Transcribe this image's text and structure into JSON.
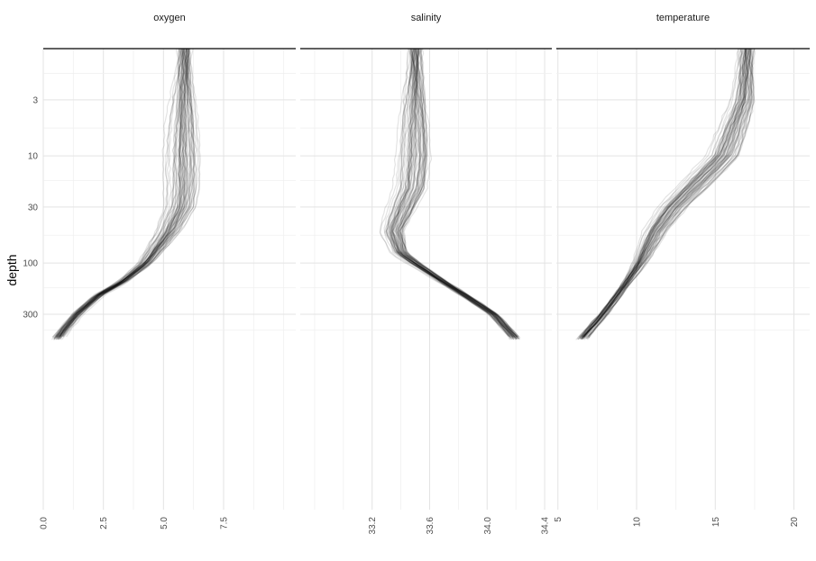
{
  "chart_data": {
    "type": "line",
    "title": "",
    "ylabel": "depth",
    "y_scale": "log",
    "y_ticks": [
      3,
      10,
      30,
      100,
      300
    ],
    "y_reversed": true,
    "grid": true,
    "legend": "none",
    "line_color": "#000000",
    "line_opacity": 0.11,
    "panels": [
      {
        "name": "oxygen",
        "xlim": [
          0,
          10.5
        ],
        "x_ticks": [
          0.0,
          2.5,
          5.0,
          7.5
        ],
        "x_tick_labels": [
          "0.0",
          "2.5",
          "5.0",
          "7.5"
        ],
        "profile_count": 60,
        "template": {
          "depth": [
            1,
            3,
            10,
            20,
            30,
            50,
            100,
            150,
            200,
            300,
            500,
            650
          ],
          "value": [
            5.9,
            5.9,
            5.9,
            5.9,
            5.8,
            5.3,
            4.3,
            3.3,
            2.3,
            1.4,
            0.6,
            0.35
          ]
        }
      },
      {
        "name": "salinity",
        "xlim": [
          32.7,
          34.45
        ],
        "x_ticks": [
          33.2,
          33.6,
          34.0,
          34.4
        ],
        "x_tick_labels": [
          "33.2",
          "33.6",
          "34.0",
          "34.4"
        ],
        "profile_count": 60,
        "template": {
          "depth": [
            1,
            10,
            20,
            30,
            50,
            80,
            100,
            150,
            200,
            300,
            500,
            650
          ],
          "value": [
            33.5,
            33.5,
            33.48,
            33.42,
            33.35,
            33.4,
            33.5,
            33.7,
            33.85,
            34.05,
            34.2,
            34.22
          ]
        }
      },
      {
        "name": "temperature",
        "xlim": [
          4.9,
          21.0
        ],
        "x_ticks": [
          5,
          10,
          15,
          20
        ],
        "x_tick_labels": [
          "5",
          "10",
          "15",
          "20"
        ],
        "profile_count": 60,
        "template": {
          "depth": [
            1,
            3,
            10,
            20,
            30,
            50,
            100,
            150,
            200,
            300,
            500,
            650
          ],
          "value": [
            17.0,
            16.8,
            15.5,
            13.5,
            12.3,
            11.2,
            10.2,
            9.4,
            8.8,
            7.9,
            6.6,
            6.1
          ]
        }
      }
    ]
  }
}
